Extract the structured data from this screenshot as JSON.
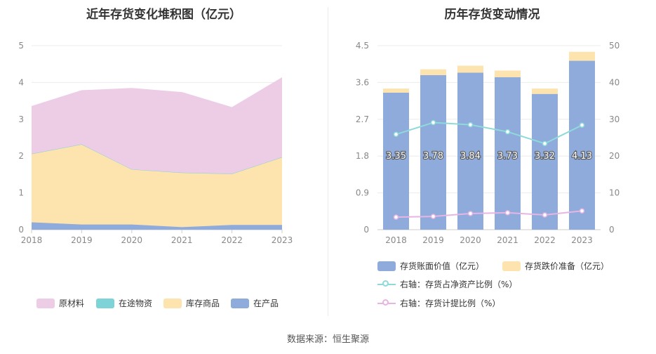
{
  "chart_data": [
    {
      "type": "area",
      "stacked": true,
      "title": "近年存货变化堆积图（亿元）",
      "categories": [
        "2018",
        "2019",
        "2020",
        "2021",
        "2022",
        "2023"
      ],
      "ylim": [
        0,
        5
      ],
      "yticks": [
        "0",
        "1",
        "2",
        "3",
        "4",
        "5"
      ],
      "series": [
        {
          "name": "在产品",
          "color": "#8eabdc",
          "values": [
            0.2,
            0.14,
            0.14,
            0.07,
            0.13,
            0.13
          ]
        },
        {
          "name": "库存商品",
          "color": "#fde3ad",
          "values": [
            1.86,
            2.18,
            1.5,
            1.48,
            1.39,
            1.84
          ]
        },
        {
          "name": "在途物资",
          "color": "#7dd3d6",
          "values": [
            0.0,
            0.0,
            0.0,
            0.0,
            0.0,
            0.0
          ]
        },
        {
          "name": "原材料",
          "color": "#edcde6",
          "values": [
            1.29,
            1.46,
            2.2,
            2.18,
            1.8,
            2.16
          ]
        }
      ],
      "legend": [
        "原材料",
        "在途物资",
        "库存商品",
        "在产品"
      ],
      "legend_position": "bottom",
      "grid": true
    },
    {
      "type": "bar",
      "stacked": true,
      "title": "历年存货变动情况",
      "categories": [
        "2018",
        "2019",
        "2020",
        "2021",
        "2022",
        "2023"
      ],
      "ylim": [
        0,
        4.5
      ],
      "yticks": [
        "0",
        "0.9",
        "1.8",
        "2.7",
        "3.6",
        "4.5"
      ],
      "y2lim": [
        0,
        50
      ],
      "y2ticks": [
        "0",
        "10",
        "20",
        "30",
        "40",
        "50"
      ],
      "series": [
        {
          "name": "存货账面价值（亿元）",
          "color": "#8eabdc",
          "values": [
            3.35,
            3.78,
            3.84,
            3.73,
            3.32,
            4.13
          ],
          "labels": [
            "3.35",
            "3.78",
            "3.84",
            "3.73",
            "3.32",
            "4.13"
          ]
        },
        {
          "name": "存货跌价准备（亿元）",
          "color": "#fde3ad",
          "values": [
            0.1,
            0.14,
            0.17,
            0.16,
            0.13,
            0.22
          ]
        }
      ],
      "lines": [
        {
          "name": "右轴：存货占净资产比例（%）",
          "color": "#8fdad9",
          "axis": "right",
          "values": [
            25.9,
            29.1,
            28.5,
            26.6,
            23.4,
            28.4
          ]
        },
        {
          "name": "右轴：存货计提比例（%）",
          "color": "#e6b5e3",
          "axis": "right",
          "values": [
            3.4,
            3.6,
            4.4,
            4.6,
            4.0,
            5.1
          ]
        }
      ],
      "legend_position": "bottom",
      "grid": true
    }
  ],
  "footer": {
    "source": "数据来源：恒生聚源"
  }
}
